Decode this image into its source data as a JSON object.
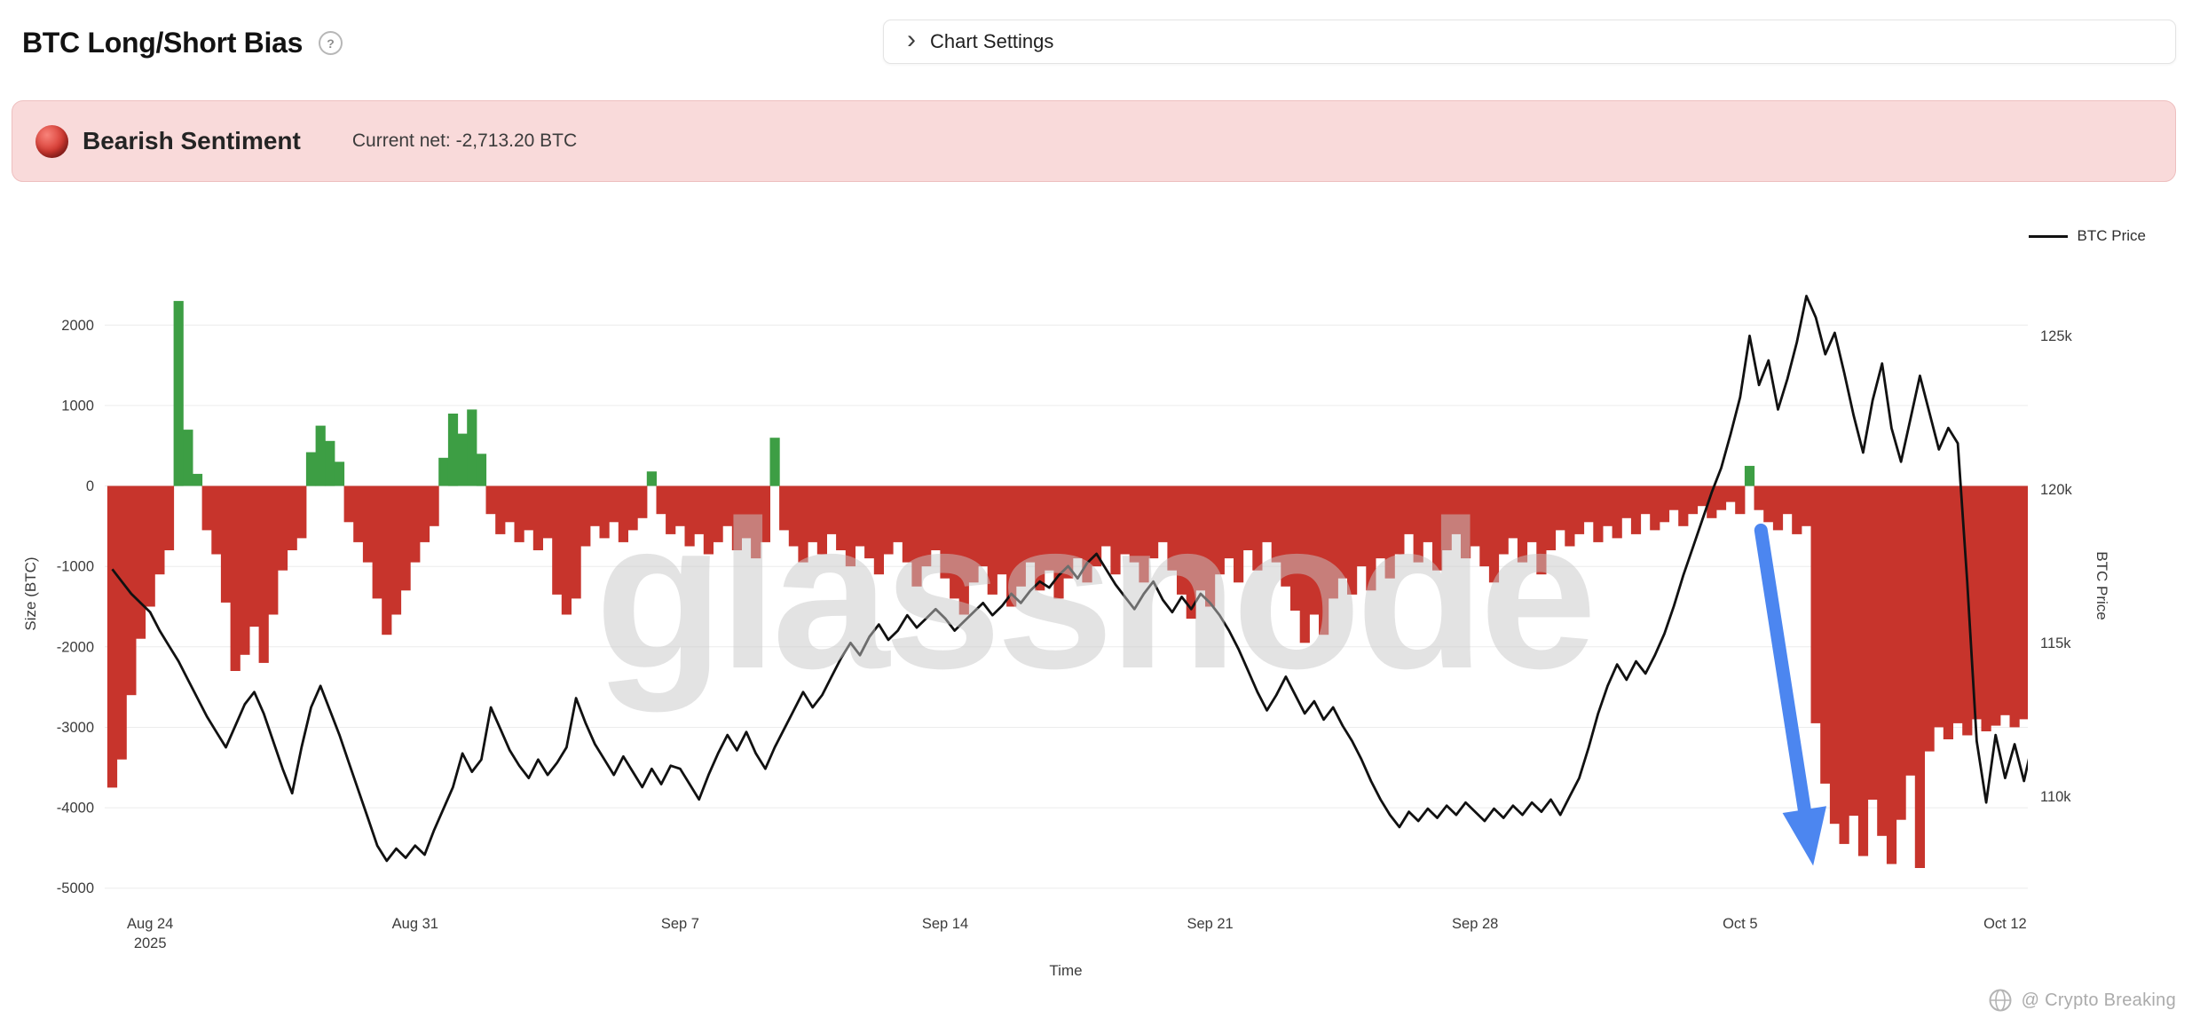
{
  "header": {
    "title": "BTC Long/Short Bias",
    "help_icon": "?",
    "chart_settings": {
      "label": "Chart Settings",
      "chevron": "›"
    }
  },
  "banner": {
    "title": "Bearish Sentiment",
    "current_net_label": "Current net: -2,713.20 BTC",
    "bg": "#f9dada",
    "border": "#eebfbf",
    "dot_highlight": "#f8837a",
    "dot_color": "#d63a32",
    "dot_dark": "#7e1212"
  },
  "legend": {
    "btc_price_label": "BTC Price",
    "line_color": "#111111"
  },
  "watermark": {
    "text": "glassnode"
  },
  "credit": {
    "text": "@ Crypto Breaking"
  },
  "chart_data": {
    "type": "bar+line",
    "x_label": "Time",
    "x_domain_days": [
      -1.2,
      49.6
    ],
    "x_ticks": [
      {
        "day": 0,
        "label": "Aug 24",
        "sublabel": "2025"
      },
      {
        "day": 7,
        "label": "Aug 31"
      },
      {
        "day": 14,
        "label": "Sep 7"
      },
      {
        "day": 21,
        "label": "Sep 14"
      },
      {
        "day": 28,
        "label": "Sep 21"
      },
      {
        "day": 35,
        "label": "Sep 28"
      },
      {
        "day": 42,
        "label": "Oct 5"
      },
      {
        "day": 49,
        "label": "Oct 12"
      }
    ],
    "left_axis": {
      "label": "Size (BTC)",
      "range": [
        -5080,
        2400
      ],
      "ticks": [
        2000,
        1000,
        0,
        -1000,
        -2000,
        -3000,
        -4000,
        -5000
      ]
    },
    "right_axis": {
      "label": "BTC Price",
      "range_k": [
        106.8,
        126.4
      ],
      "ticks": [
        {
          "v": 125,
          "label": "125k"
        },
        {
          "v": 120,
          "label": "120k"
        },
        {
          "v": 115,
          "label": "115k"
        },
        {
          "v": 110,
          "label": "110k"
        }
      ]
    },
    "current_net_btc": -2713.2,
    "bars": {
      "name": "Net Long/Short Size (BTC)",
      "t_start": -1.0,
      "t_step": 0.25,
      "pos_color": "#3d9e44",
      "neg_color": "#c7342c",
      "values": [
        -3750,
        -3400,
        -2600,
        -1900,
        -1500,
        -1100,
        -800,
        2300,
        700,
        150,
        -550,
        -850,
        -1450,
        -2300,
        -2100,
        -1750,
        -2200,
        -1600,
        -1050,
        -800,
        -650,
        420,
        750,
        560,
        300,
        -450,
        -700,
        -950,
        -1400,
        -1850,
        -1600,
        -1300,
        -950,
        -700,
        -500,
        350,
        900,
        650,
        950,
        400,
        -350,
        -600,
        -450,
        -700,
        -550,
        -800,
        -650,
        -1350,
        -1600,
        -1400,
        -750,
        -500,
        -650,
        -450,
        -700,
        -550,
        -400,
        180,
        -350,
        -600,
        -500,
        -750,
        -600,
        -850,
        -700,
        -500,
        -800,
        -650,
        -900,
        -700,
        600,
        -550,
        -750,
        -950,
        -700,
        -850,
        -600,
        -800,
        -1000,
        -750,
        -900,
        -1100,
        -850,
        -700,
        -950,
        -1250,
        -1000,
        -800,
        -1150,
        -1400,
        -1600,
        -1200,
        -1000,
        -1350,
        -1100,
        -1500,
        -1250,
        -950,
        -1300,
        -1050,
        -1400,
        -1150,
        -900,
        -1200,
        -1000,
        -750,
        -1100,
        -850,
        -950,
        -1200,
        -900,
        -700,
        -1050,
        -1350,
        -1650,
        -1300,
        -1500,
        -1100,
        -900,
        -1200,
        -800,
        -1050,
        -700,
        -950,
        -1250,
        -1550,
        -1950,
        -1600,
        -1850,
        -1400,
        -1150,
        -1350,
        -1000,
        -1300,
        -900,
        -1150,
        -850,
        -600,
        -950,
        -700,
        -1050,
        -800,
        -600,
        -900,
        -750,
        -1000,
        -1200,
        -850,
        -650,
        -950,
        -700,
        -1100,
        -800,
        -550,
        -750,
        -600,
        -450,
        -700,
        -500,
        -650,
        -400,
        -600,
        -350,
        -550,
        -450,
        -300,
        -500,
        -350,
        -250,
        -400,
        -300,
        -200,
        -350,
        250,
        -300,
        -450,
        -550,
        -350,
        -600,
        -500,
        -2950,
        -3700,
        -4200,
        -4450,
        -4100,
        -4600,
        -3900,
        -4350,
        -4700,
        -4150,
        -3600,
        -4750,
        -3300,
        -3000,
        -3150,
        -2950,
        -3100,
        -2900,
        -3050,
        -2980,
        -2850,
        -3000,
        -2900,
        -2713.2
      ]
    },
    "price": {
      "name": "BTC Price",
      "t_start": -1.0,
      "t_step": 0.25,
      "color": "#111111",
      "values_k": [
        117.4,
        117.0,
        116.6,
        116.3,
        116.0,
        115.4,
        114.9,
        114.4,
        113.8,
        113.2,
        112.6,
        112.1,
        111.6,
        112.3,
        113.0,
        113.4,
        112.7,
        111.8,
        110.9,
        110.1,
        111.6,
        112.9,
        113.6,
        112.8,
        112.0,
        111.1,
        110.2,
        109.3,
        108.4,
        107.9,
        108.3,
        108.0,
        108.4,
        108.1,
        108.9,
        109.6,
        110.3,
        111.4,
        110.8,
        111.2,
        112.9,
        112.2,
        111.5,
        111.0,
        110.6,
        111.2,
        110.7,
        111.1,
        111.6,
        113.2,
        112.4,
        111.7,
        111.2,
        110.7,
        111.3,
        110.8,
        110.3,
        110.9,
        110.4,
        111.0,
        110.9,
        110.4,
        109.9,
        110.7,
        111.4,
        112.0,
        111.5,
        112.1,
        111.4,
        110.9,
        111.6,
        112.2,
        112.8,
        113.4,
        112.9,
        113.3,
        113.9,
        114.5,
        115.0,
        114.6,
        115.2,
        115.6,
        115.1,
        115.4,
        115.9,
        115.5,
        115.8,
        116.1,
        115.8,
        115.4,
        115.7,
        116.0,
        116.3,
        115.9,
        116.2,
        116.6,
        116.3,
        116.7,
        117.0,
        116.8,
        117.2,
        117.5,
        117.1,
        117.6,
        117.9,
        117.4,
        116.9,
        116.5,
        116.1,
        116.6,
        117.0,
        116.4,
        116.0,
        116.5,
        116.1,
        116.6,
        116.3,
        115.9,
        115.4,
        114.8,
        114.1,
        113.4,
        112.8,
        113.3,
        113.9,
        113.3,
        112.7,
        113.1,
        112.5,
        112.9,
        112.3,
        111.8,
        111.2,
        110.5,
        109.9,
        109.4,
        109.0,
        109.5,
        109.2,
        109.6,
        109.3,
        109.7,
        109.4,
        109.8,
        109.5,
        109.2,
        109.6,
        109.3,
        109.7,
        109.4,
        109.8,
        109.5,
        109.9,
        109.4,
        110.0,
        110.6,
        111.6,
        112.7,
        113.6,
        114.3,
        113.8,
        114.4,
        114.0,
        114.6,
        115.3,
        116.2,
        117.2,
        118.1,
        119.0,
        119.9,
        120.7,
        121.8,
        123.0,
        125.0,
        123.4,
        124.2,
        122.6,
        123.6,
        124.8,
        126.3,
        125.6,
        124.4,
        125.1,
        123.8,
        122.4,
        121.2,
        122.9,
        124.1,
        122.0,
        120.9,
        122.3,
        123.7,
        122.5,
        121.3,
        122.0,
        121.5,
        117.0,
        111.8,
        109.8,
        112.0,
        110.6,
        111.7,
        110.5,
        111.9
      ]
    },
    "annotation_arrow": {
      "color": "#4c86f0",
      "from_day": 42.55,
      "from_size": -550,
      "to_day": 43.85,
      "to_size": -4480
    }
  }
}
